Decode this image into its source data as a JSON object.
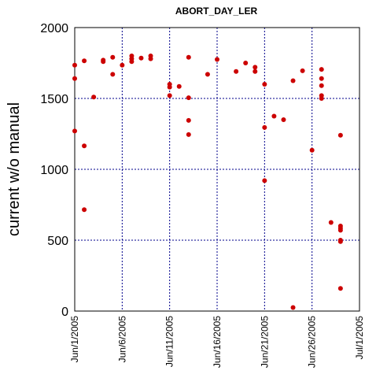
{
  "chart_data": {
    "type": "scatter",
    "title": "ABORT_DAY_LER",
    "xlabel": "",
    "ylabel": "current w/o manual",
    "x_ticks": [
      "Jun/1/2005",
      "Jun/6/2005",
      "Jun/11/2005",
      "Jun/16/2005",
      "Jun/21/2005",
      "Jun/26/2005",
      "Jul/1/2005"
    ],
    "xlim": [
      "2005-06-01",
      "2005-07-01"
    ],
    "ylim": [
      0,
      2000
    ],
    "y_ticks": [
      0,
      500,
      1000,
      1500,
      2000
    ],
    "grid": true,
    "marker_color": "#cc0000",
    "series": [
      {
        "x": [
          "2005-06-01",
          "2005-06-01",
          "2005-06-01",
          "2005-06-02",
          "2005-06-02",
          "2005-06-02",
          "2005-06-03",
          "2005-06-04",
          "2005-06-04",
          "2005-06-05",
          "2005-06-05",
          "2005-06-06",
          "2005-06-07",
          "2005-06-07",
          "2005-06-07",
          "2005-06-08",
          "2005-06-09",
          "2005-06-09",
          "2005-06-11",
          "2005-06-11",
          "2005-06-11",
          "2005-06-12",
          "2005-06-13",
          "2005-06-13",
          "2005-06-13",
          "2005-06-13",
          "2005-06-15",
          "2005-06-16",
          "2005-06-18",
          "2005-06-19",
          "2005-06-20",
          "2005-06-20",
          "2005-06-21",
          "2005-06-21",
          "2005-06-21",
          "2005-06-22",
          "2005-06-23",
          "2005-06-24",
          "2005-06-24",
          "2005-06-25",
          "2005-06-26",
          "2005-06-27",
          "2005-06-27",
          "2005-06-27",
          "2005-06-27",
          "2005-06-27",
          "2005-06-28",
          "2005-06-29",
          "2005-06-29",
          "2005-06-29",
          "2005-06-29",
          "2005-06-29",
          "2005-06-29",
          "2005-06-29"
        ],
        "y": [
          1735,
          1640,
          1270,
          1765,
          1165,
          715,
          1510,
          1760,
          1770,
          1790,
          1670,
          1735,
          1800,
          1780,
          1760,
          1785,
          1800,
          1780,
          1600,
          1580,
          1520,
          1585,
          1790,
          1505,
          1345,
          1245,
          1670,
          1775,
          1690,
          1750,
          1720,
          1690,
          1600,
          1295,
          920,
          1375,
          1350,
          1625,
          25,
          1695,
          1135,
          1705,
          1640,
          1590,
          1520,
          1500,
          625,
          1240,
          600,
          585,
          570,
          500,
          490,
          160
        ]
      }
    ]
  }
}
